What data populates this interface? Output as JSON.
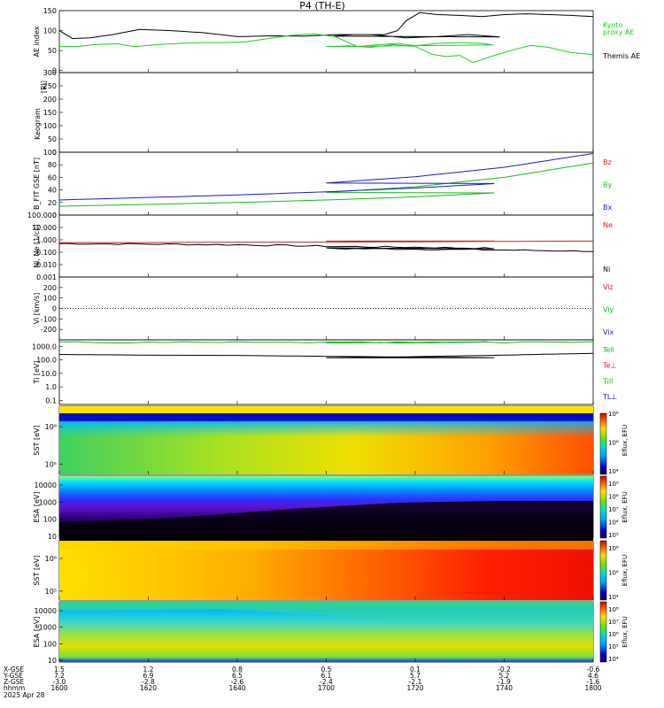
{
  "title": "P4 (TH-E)",
  "date": "2025 Apr 28",
  "colors": {
    "bz": "#d42020",
    "by": "#18b818",
    "bx": "#1a1ac8",
    "kyoto": "#22cc22",
    "themis": "#000000",
    "ne": "#cc2222",
    "ni": "#000000"
  },
  "chart_data": [
    {
      "type": "line",
      "panel": "ae",
      "ylabel": "AE index",
      "ylim": [
        -5,
        150
      ],
      "yticks": [
        "150",
        "100",
        "50",
        "0"
      ],
      "series": [
        {
          "name": "Themis AE",
          "color": "#000000",
          "x": [
            1600,
            1603,
            1607,
            1612,
            1618,
            1625,
            1632,
            1640,
            1648,
            1655,
            1662,
            1670,
            1678,
            1685,
            1692,
            1699,
            1706,
            1713,
            1716,
            1718,
            1721,
            1725,
            1730,
            1735,
            1740,
            1745,
            1750,
            1755,
            1760
          ],
          "y": [
            100,
            80,
            82,
            90,
            103,
            100,
            95,
            85,
            87,
            86,
            90,
            90,
            82,
            85,
            90,
            84,
            90,
            90,
            100,
            125,
            145,
            140,
            138,
            135,
            140,
            142,
            140,
            138,
            135
          ]
        },
        {
          "name": "Kyoto proxy AE",
          "color": "#22cc22",
          "x": [
            1600,
            1604,
            1608,
            1613,
            1617,
            1622,
            1627,
            1632,
            1637,
            1642,
            1647,
            1652,
            1657,
            1662,
            1667,
            1672,
            1676,
            1680,
            1685,
            1690,
            1695,
            1700,
            1705,
            1710,
            1715,
            1720,
            1724,
            1727,
            1730,
            1733,
            1737,
            1742,
            1746,
            1750,
            1755,
            1760
          ],
          "y": [
            60,
            60,
            65,
            67,
            60,
            65,
            68,
            70,
            70,
            72,
            80,
            88,
            92,
            85,
            60,
            65,
            68,
            62,
            68,
            70,
            68,
            60,
            62,
            58,
            65,
            60,
            40,
            35,
            38,
            20,
            35,
            52,
            63,
            58,
            45,
            40
          ]
        }
      ],
      "legend": [
        "Kyoto",
        "proxy AE",
        "Themis AE"
      ]
    },
    {
      "type": "heatmap",
      "panel": "keogram",
      "ylabel": "Keogram",
      "unit": "[Rl]",
      "yticks": [
        "300",
        "250",
        "200",
        "150",
        "100",
        "50",
        "0"
      ]
    },
    {
      "type": "line",
      "panel": "bfield",
      "ylabel": "B_FIT GSE [nT]",
      "ylim": [
        0,
        100
      ],
      "yticks": [
        "100",
        "80",
        "60",
        "40",
        "20",
        "0"
      ],
      "series": [
        {
          "name": "Bz",
          "color": "#d42020",
          "x": [
            1600,
            1760
          ],
          "y": [
            0,
            0
          ]
        },
        {
          "name": "By",
          "color": "#18b818",
          "x": [
            1600,
            1620,
            1640,
            1660,
            1680,
            1700,
            1720,
            1740,
            1760
          ],
          "y": [
            14,
            17,
            20,
            24,
            29,
            36,
            45,
            60,
            83
          ]
        },
        {
          "name": "Bx",
          "color": "#1a1ac8",
          "x": [
            1600,
            1620,
            1640,
            1660,
            1680,
            1700,
            1720,
            1740,
            1760
          ],
          "y": [
            24,
            28,
            32,
            37,
            43,
            51,
            61,
            76,
            98
          ]
        }
      ],
      "legend": [
        "Bz",
        "By",
        "Bx"
      ]
    },
    {
      "type": "line",
      "panel": "density",
      "ylabel": "Ni, Ne [1/cc]",
      "yscale": "log",
      "ylim": [
        0.001,
        100
      ],
      "yticks": [
        "100.000",
        "10.000",
        "1.000",
        "0.100",
        "0.010",
        "0.001"
      ],
      "series": [
        {
          "name": "Ne",
          "color": "#cc2222",
          "x": [
            1600,
            1620,
            1640,
            1660,
            1680,
            1700,
            1720,
            1740,
            1760
          ],
          "y": [
            0.6,
            0.6,
            0.65,
            0.65,
            0.7,
            0.8,
            0.7,
            0.75,
            0.8
          ]
        },
        {
          "name": "Ni",
          "color": "#000000",
          "x": [
            1600,
            1620,
            1640,
            1660,
            1680,
            1700,
            1720,
            1740,
            1760
          ],
          "y": [
            0.5,
            0.45,
            0.4,
            0.3,
            0.25,
            0.2,
            0.18,
            0.15,
            0.12
          ]
        }
      ],
      "legend": [
        "Ne",
        "Ni"
      ]
    },
    {
      "type": "line",
      "panel": "velocity",
      "ylabel": "Vi [km/s]",
      "ylim": [
        -300,
        300
      ],
      "yticks": [
        "200",
        "100",
        "0",
        "-100",
        "-200"
      ],
      "series": [
        {
          "name": "Vix",
          "color": "#1a1ac8",
          "x": [
            1600,
            1760
          ],
          "y": [
            0,
            0
          ]
        },
        {
          "name": "Viy",
          "color": "#18b818",
          "x": [
            1600,
            1760
          ],
          "y": [
            0,
            0
          ]
        },
        {
          "name": "Viz",
          "color": "#d42020",
          "x": [
            1600,
            1760
          ],
          "y": [
            0,
            0
          ]
        }
      ],
      "legend": [
        "Viz",
        "Viy",
        "Vix"
      ]
    },
    {
      "type": "line",
      "panel": "temperature",
      "ylabel": "Ti [eV]",
      "yscale": "log",
      "ylim": [
        0.05,
        3000
      ],
      "yticks": [
        "1000.0",
        "100.0",
        "10.0",
        "1.0",
        "0.1"
      ],
      "series": [
        {
          "name": "Tell",
          "color": "#18b818",
          "x": [
            1600,
            1760
          ],
          "y": [
            3000,
            3000
          ]
        },
        {
          "name": "Ti",
          "color": "#000000",
          "x": [
            1600,
            1620,
            1640,
            1660,
            1680,
            1700,
            1720,
            1740,
            1760
          ],
          "y": [
            250,
            220,
            210,
            180,
            160,
            140,
            170,
            220,
            300
          ]
        }
      ],
      "legend": [
        "Tell",
        "Te⊥",
        "Till",
        "TL⊥"
      ]
    },
    {
      "type": "heatmap",
      "panel": "sst_e",
      "ylabel": "SST [eV]",
      "yticks": [
        "10⁶",
        "10⁵"
      ],
      "colorbar": {
        "label": "Eflux, EFU",
        "ticks": [
          "10⁸",
          "10⁶",
          "10⁴"
        ]
      }
    },
    {
      "type": "heatmap",
      "panel": "esa_e",
      "ylabel": "ESA [eV]",
      "yticks": [
        "10000",
        "1000",
        "100",
        "10"
      ],
      "colorbar": {
        "label": "Eflux, EFU",
        "ticks": [
          "10⁹",
          "10⁸",
          "10⁷",
          "10⁶",
          "10⁵"
        ]
      }
    },
    {
      "type": "heatmap",
      "panel": "sst_i",
      "ylabel": "SST [eV]",
      "yticks": [
        "10⁶",
        "10⁵"
      ],
      "colorbar": {
        "label": "Eflux, EFU",
        "ticks": [
          "10⁸",
          "10⁶",
          "10⁴"
        ]
      }
    },
    {
      "type": "heatmap",
      "panel": "esa_i",
      "ylabel": "ESA [eV]",
      "yticks": [
        "10000",
        "1000",
        "100",
        "10"
      ],
      "colorbar": {
        "label": "Eflux, EFU",
        "ticks": [
          "10⁸",
          "10⁷",
          "10⁶",
          "10⁵",
          "10⁴"
        ]
      }
    }
  ],
  "xaxis": {
    "row_labels": [
      "X-GSE",
      "Y-GSE",
      "Z-GSE",
      "hhmm"
    ],
    "columns": [
      {
        "t": 1600,
        "x": "1.5",
        "y": "7.2",
        "z": "-3.0",
        "hhmm": "1600"
      },
      {
        "t": 1620,
        "x": "1.2",
        "y": "6.9",
        "z": "-2.8",
        "hhmm": "1620"
      },
      {
        "t": 1640,
        "x": "0.8",
        "y": "6.5",
        "z": "-2.6",
        "hhmm": "1640"
      },
      {
        "t": 1700,
        "x": "0.5",
        "y": "6.1",
        "z": "-2.4",
        "hhmm": "1700"
      },
      {
        "t": 1720,
        "x": "0.1",
        "y": "5.7",
        "z": "-2.1",
        "hhmm": "1720"
      },
      {
        "t": 1740,
        "x": "-0.2",
        "y": "5.2",
        "z": "-1.9",
        "hhmm": "1740"
      },
      {
        "t": 1800,
        "x": "-0.6",
        "y": "4.6",
        "z": "-1.6",
        "hhmm": "1800"
      }
    ]
  }
}
